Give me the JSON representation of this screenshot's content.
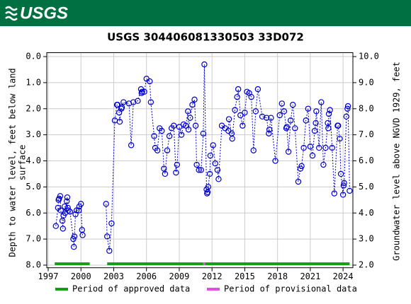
{
  "logo": "USGS",
  "chart_data": {
    "type": "scatter",
    "title": "USGS 304406081330503 33D072",
    "ylabel": [
      "Depth to water level, feet below land",
      "surface"
    ],
    "y2label": "Groundwater level above NGVD 1929, feet",
    "color": "#0000cc",
    "x": [
      1997.7,
      1997.9,
      1997.95,
      1998.0,
      1998.1,
      1998.15,
      1998.3,
      1998.35,
      1998.4,
      1998.5,
      1998.55,
      1998.7,
      1998.75,
      1998.8,
      1998.85,
      1999.0,
      1999.3,
      1999.35,
      1999.4,
      1999.5,
      1999.6,
      1999.8,
      1999.85,
      2000.0,
      2000.1,
      2000.15,
      null,
      2002.3,
      2002.4,
      2002.6,
      2002.8,
      2003.1,
      2003.3,
      2003.35,
      2003.5,
      2003.55,
      2003.7,
      2003.75,
      2003.9,
      2004.4,
      2004.6,
      2004.8,
      2005.2,
      2005.5,
      2005.55,
      2005.6,
      2005.8,
      2006.0,
      2006.3,
      2006.4,
      2006.7,
      2006.8,
      2007.0,
      2007.2,
      2007.4,
      2007.6,
      2007.7,
      2007.9,
      2008.1,
      2008.3,
      2008.5,
      2008.7,
      2008.8,
      2009.0,
      2009.2,
      2009.4,
      2009.6,
      2009.8,
      2009.85,
      2010.0,
      2010.2,
      2010.4,
      2010.5,
      2010.6,
      2010.8,
      2011.0,
      2011.2,
      2011.3,
      2011.5,
      2011.55,
      2011.6,
      2011.65,
      2011.8,
      2011.85,
      2012.1,
      2012.3,
      2012.5,
      2012.6,
      2012.9,
      2013.2,
      2013.5,
      2013.55,
      2013.8,
      2013.85,
      2014.1,
      2014.3,
      2014.4,
      2014.6,
      2014.8,
      2015.0,
      2015.2,
      2015.4,
      2015.6,
      2015.8,
      2016.0,
      2016.2,
      2016.6,
      2017.0,
      2017.2,
      2017.25,
      2017.4,
      2017.8,
      2018.2,
      2018.4,
      2018.6,
      2018.8,
      2018.85,
      2019.0,
      2019.2,
      2019.4,
      2019.6,
      2019.9,
      2020.1,
      2020.2,
      2020.4,
      2020.6,
      2020.8,
      2021.0,
      2021.2,
      2021.4,
      2021.5,
      2021.55,
      2021.8,
      2022.0,
      2022.2,
      2022.4,
      2022.6,
      2022.65,
      2022.7,
      2022.8,
      2023.0,
      2023.2,
      2023.5,
      2023.55,
      2023.7,
      2023.8,
      2024.0,
      2024.05,
      2024.1,
      2024.3,
      2024.4,
      2024.45,
      2024.6
    ],
    "values": [
      6.5,
      5.8,
      5.5,
      5.45,
      5.35,
      5.9,
      6.3,
      6.6,
      6.1,
      5.75,
      6.0,
      5.55,
      5.4,
      5.8,
      5.9,
      5.95,
      7.0,
      7.3,
      6.9,
      6.05,
      5.9,
      5.9,
      5.75,
      5.65,
      6.65,
      6.85,
      null,
      5.65,
      6.9,
      7.45,
      6.4,
      2.45,
      1.85,
      1.85,
      2.15,
      2.5,
      2.0,
      1.95,
      1.75,
      1.8,
      3.4,
      1.75,
      1.7,
      1.25,
      1.4,
      1.35,
      1.35,
      0.85,
      0.95,
      1.75,
      3.05,
      3.5,
      3.6,
      2.75,
      2.85,
      4.3,
      4.5,
      3.6,
      3.05,
      2.75,
      2.65,
      4.45,
      4.15,
      2.7,
      3.0,
      2.6,
      2.65,
      2.1,
      2.8,
      2.35,
      1.85,
      1.65,
      2.65,
      4.15,
      4.35,
      4.35,
      2.95,
      0.3,
      5.1,
      5.25,
      5.2,
      5.0,
      4.5,
      3.8,
      3.4,
      4.1,
      4.35,
      4.7,
      2.65,
      2.75,
      2.85,
      2.4,
      2.95,
      3.15,
      2.05,
      1.55,
      1.25,
      2.25,
      2.65,
      2.15,
      1.35,
      1.4,
      1.55,
      3.6,
      2.1,
      1.25,
      2.3,
      2.35,
      2.95,
      2.8,
      2.35,
      4.0,
      2.25,
      1.8,
      2.1,
      2.75,
      2.7,
      3.65,
      2.45,
      1.85,
      2.75,
      4.8,
      4.3,
      4.2,
      3.5,
      2.45,
      2.0,
      3.45,
      3.8,
      2.85,
      2.55,
      2.1,
      3.5,
      1.75,
      4.15,
      3.5,
      2.55,
      2.75,
      2.2,
      2.05,
      3.5,
      5.25,
      2.65,
      2.65,
      3.15,
      4.5,
      5.3,
      4.95,
      4.85,
      2.3,
      2.0,
      1.9,
      5.15
    ],
    "xlim": [
      1996.87,
      2024.9
    ],
    "xticks": [
      1997,
      2000,
      2003,
      2006,
      2009,
      2012,
      2015,
      2018,
      2021,
      2024
    ],
    "ylim": [
      -0.15,
      8.1
    ],
    "y_inverted": true,
    "yticks": [
      {
        "value": 0,
        "label": "0.0"
      },
      {
        "value": 1,
        "label": "1.0"
      },
      {
        "value": 2,
        "label": "2.0"
      },
      {
        "value": 3,
        "label": "3.0"
      },
      {
        "value": 4,
        "label": "4.0"
      },
      {
        "value": 5,
        "label": "5.0"
      },
      {
        "value": 6,
        "label": "6.0"
      },
      {
        "value": 7,
        "label": "7.0"
      },
      {
        "value": 8,
        "label": "8.0"
      }
    ],
    "y2lim": [
      1.9,
      10.15
    ],
    "y2ticks": [
      {
        "value": 10,
        "label": "10.0"
      },
      {
        "value": 9,
        "label": "9.0"
      },
      {
        "value": 8,
        "label": "8.0"
      },
      {
        "value": 7,
        "label": "7.0"
      },
      {
        "value": 6,
        "label": "6.0"
      },
      {
        "value": 5,
        "label": "5.0"
      },
      {
        "value": 4,
        "label": "4.0"
      },
      {
        "value": 3,
        "label": "3.0"
      },
      {
        "value": 2,
        "label": "2.0"
      }
    ],
    "grid": true,
    "periods": [
      {
        "name": "Period of approved data",
        "color": "#1a9a1a",
        "ranges": [
          [
            1997.6,
            2000.8
          ],
          [
            2002.4,
            2011.2
          ],
          [
            2011.35,
            2024.6
          ]
        ]
      },
      {
        "name": "Period of provisional data",
        "color": "#e050e0",
        "ranges": [
          [
            2011.2,
            2011.35
          ]
        ]
      }
    ],
    "period_level": 7.95
  }
}
